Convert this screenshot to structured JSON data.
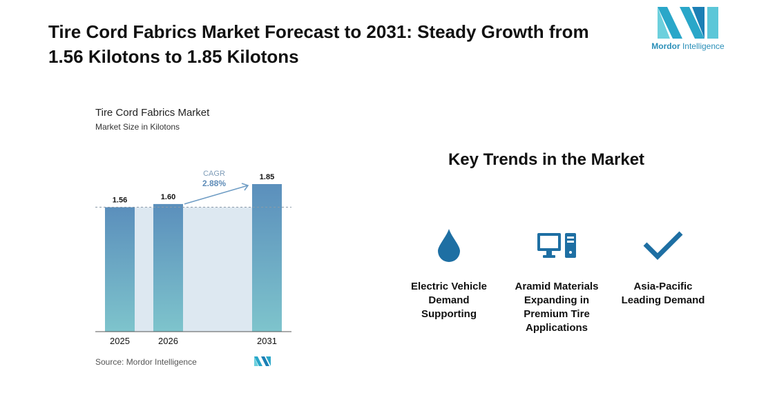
{
  "header": {
    "title": "Tire Cord Fabrics Market Forecast to 2031: Steady Growth from 1.56 Kilotons to 1.85 Kilotons",
    "logo_name": "Mordor",
    "logo_suffix": "Intelligence"
  },
  "chart_data": {
    "type": "bar",
    "title": "Tire Cord Fabrics Market",
    "subtitle": "Market Size in Kilotons",
    "categories": [
      "2025",
      "2026",
      "2031"
    ],
    "values": [
      1.56,
      1.6,
      1.85
    ],
    "value_labels": [
      "1.56",
      "1.60",
      "1.85"
    ],
    "ylim": [
      0,
      1.85
    ],
    "cagr_label": "CAGR",
    "cagr_value": "2.88%",
    "source": "Source: Mordor Intelligence",
    "colors": {
      "bar_top": "#5b8fbc",
      "bar_bottom": "#7ec4cc",
      "band": "#dde8f1",
      "arrow": "#6e9cc4"
    }
  },
  "trends": {
    "title": "Key Trends in the Market",
    "items": [
      {
        "icon": "water-drop-icon",
        "label": "Electric Vehicle Demand Supporting"
      },
      {
        "icon": "computer-icon",
        "label": "Aramid Materials Expanding in Premium Tire Applications"
      },
      {
        "icon": "checkmark-icon",
        "label": "Asia-Pacific Leading Demand"
      }
    ],
    "icon_color": "#1e6fa3"
  }
}
